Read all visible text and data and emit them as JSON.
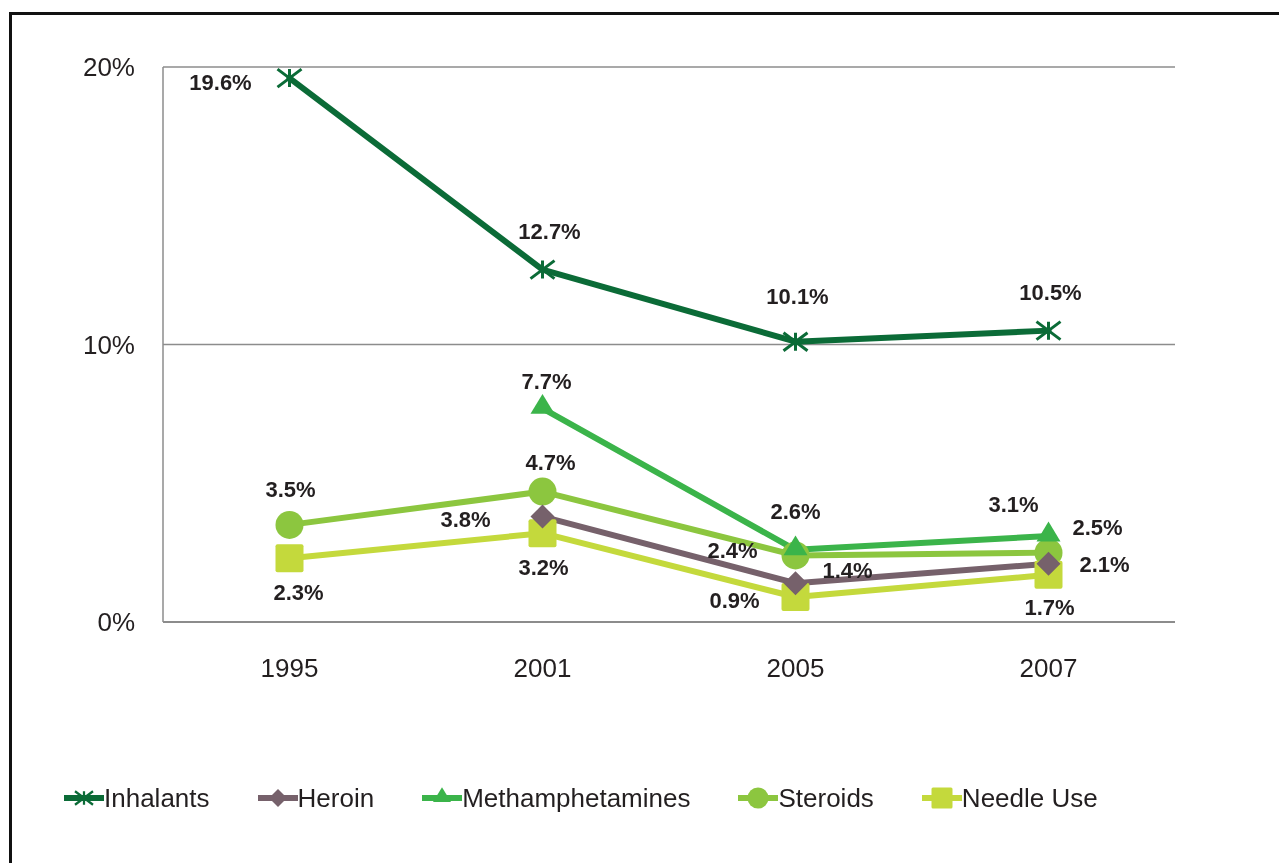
{
  "chart_data": {
    "type": "line",
    "categories": [
      "1995",
      "2001",
      "2005",
      "2007"
    ],
    "series": [
      {
        "name": "Inhalants",
        "color": "#0b6b37",
        "marker": "cross",
        "values": [
          19.6,
          12.7,
          10.1,
          10.5
        ],
        "value_labels": [
          "19.6%",
          "12.7%",
          "10.1%",
          "10.5%"
        ]
      },
      {
        "name": "Heroin",
        "color": "#76616b",
        "marker": "diamond",
        "values": [
          null,
          3.8,
          1.4,
          2.1
        ],
        "value_labels": [
          null,
          "3.8%",
          "1.4%",
          "2.1%"
        ]
      },
      {
        "name": "Methamphetamines",
        "color": "#3bb44a",
        "marker": "triangle",
        "values": [
          null,
          7.7,
          2.6,
          3.1
        ],
        "value_labels": [
          null,
          "7.7%",
          "2.6%",
          "3.1%"
        ]
      },
      {
        "name": "Steroids",
        "color": "#8cc63f",
        "marker": "circle",
        "values": [
          3.5,
          4.7,
          2.4,
          2.5
        ],
        "value_labels": [
          "3.5%",
          "4.7%",
          "2.4%",
          "2.5%"
        ]
      },
      {
        "name": "Needle Use",
        "color": "#c4d93c",
        "marker": "square",
        "values": [
          2.3,
          3.2,
          0.9,
          1.7
        ],
        "value_labels": [
          "2.3%",
          "3.2%",
          "0.9%",
          "1.7%"
        ]
      }
    ],
    "ylim": [
      0,
      20
    ],
    "yticks": [
      {
        "value": 0,
        "label": "0%"
      },
      {
        "value": 10,
        "label": "10%"
      },
      {
        "value": 20,
        "label": "20%"
      }
    ],
    "grid": "y",
    "legend": "bottom",
    "line_style": "solid"
  }
}
